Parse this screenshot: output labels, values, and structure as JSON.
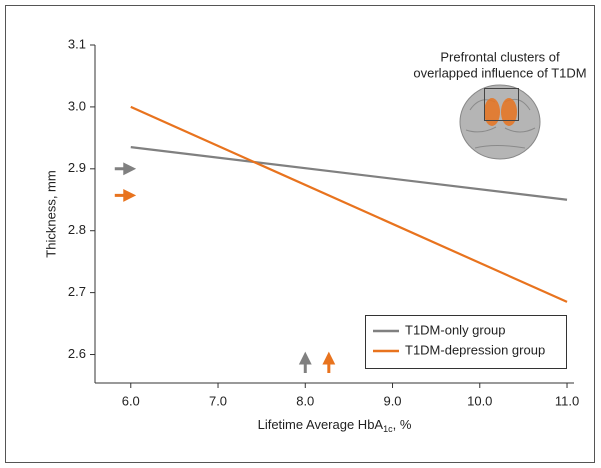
{
  "chart_data": {
    "type": "line",
    "annotation": [
      "Prefrontal clusters of",
      "overlapped influence of T1DM"
    ],
    "xlabel": [
      "Lifetime Average HbA",
      "1c",
      ", %"
    ],
    "ylabel": "Thickness, mm",
    "x": [
      6.0,
      11.0
    ],
    "series": [
      {
        "name": "T1DM-only group",
        "color": "#808080",
        "values": [
          2.935,
          2.85
        ]
      },
      {
        "name": "T1DM-depression group",
        "color": "#e8731e",
        "values": [
          3.0,
          2.685
        ]
      }
    ],
    "y_arrows": [
      {
        "color": "#808080",
        "value": 2.9
      },
      {
        "color": "#e8731e",
        "value": 2.857
      }
    ],
    "x_arrows": [
      {
        "color": "#808080",
        "value": 8.0
      },
      {
        "color": "#e8731e",
        "value": 8.27
      }
    ],
    "xlim": [
      5.59,
      11.08
    ],
    "ylim": [
      2.554,
      3.1
    ],
    "xticks": [
      {
        "value": 6,
        "label": "6.0"
      },
      {
        "value": 7,
        "label": "7.0"
      },
      {
        "value": 8,
        "label": "8.0"
      },
      {
        "value": 9,
        "label": "9.0"
      },
      {
        "value": 10,
        "label": "10.0"
      },
      {
        "value": 11,
        "label": "11.0"
      }
    ],
    "yticks": [
      2.6,
      2.7,
      2.8,
      2.9,
      {
        "value": 3,
        "label": "3.0"
      },
      3.1
    ],
    "legend": "lower right"
  }
}
